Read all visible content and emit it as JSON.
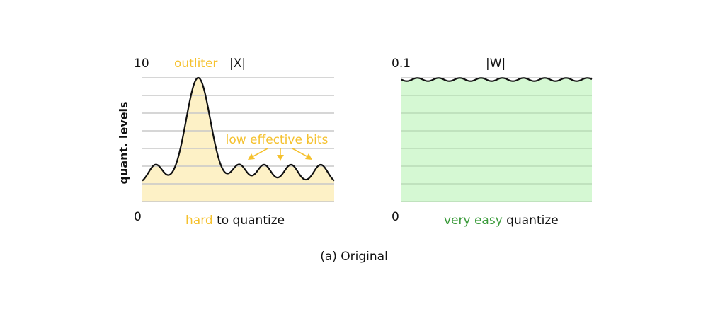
{
  "colors": {
    "accent_yellow": "#f5c12e",
    "accent_green": "#3a9a3a",
    "fill_yellow": "#fdf1c6",
    "fill_green": "#d5f8d3",
    "grid": "#c8c8c8",
    "text": "#111111"
  },
  "left_panel": {
    "y_max": "10",
    "y_min": "0",
    "ylabel": "quant. levels",
    "outlier_label": "outliter",
    "var_label": "|X|",
    "annotation": "low effective bits",
    "caption_highlight": "hard",
    "caption_rest": " to quantize"
  },
  "right_panel": {
    "y_max": "0.1",
    "y_min": "0",
    "var_label": "|W|",
    "caption_highlight": "very easy",
    "caption_rest": " quantize"
  },
  "subtitle": "(a) Original"
}
